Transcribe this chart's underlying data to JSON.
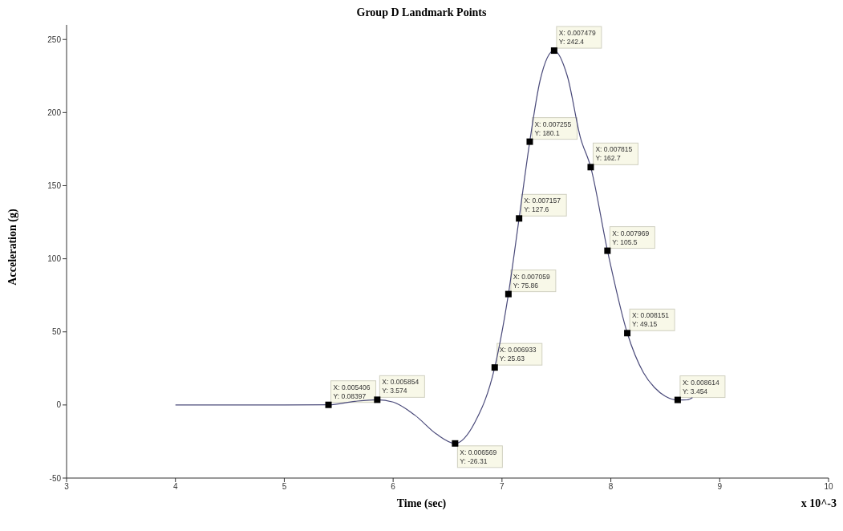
{
  "chart_data": {
    "type": "line",
    "title": "Group D Landmark Points",
    "xlabel": "Time (sec)",
    "ylabel": "Acceleration (g)",
    "xlim": [
      3,
      10
    ],
    "xticks": [
      3,
      4,
      5,
      6,
      7,
      8,
      9,
      10
    ],
    "ylim": [
      -50,
      260
    ],
    "yticks": [
      -50,
      0,
      50,
      100,
      150,
      200,
      250
    ],
    "series": [
      {
        "color": "#4a4a7a",
        "marker": "none",
        "x": [
          4,
          5,
          5.406,
          5.65,
          5.854,
          6.0,
          6.2,
          6.4,
          6.569,
          6.75,
          6.933,
          7.059,
          7.157,
          7.255,
          7.35,
          7.479,
          7.6,
          7.72,
          7.815,
          7.969,
          8.151,
          8.3,
          8.4,
          8.5,
          8.614,
          8.7,
          8.75
        ],
        "values": [
          0,
          0,
          0.08397,
          2.5,
          3.574,
          2,
          -7,
          -20,
          -26.31,
          -12,
          25.63,
          75.86,
          127.6,
          180.1,
          222,
          242.4,
          225,
          183,
          162.7,
          105.5,
          49.15,
          22,
          12,
          6,
          3.454,
          3.5,
          5
        ]
      },
      {
        "type": "scatter",
        "color": "#000000",
        "marker": "square",
        "x": [
          5.406,
          5.854,
          6.569,
          6.933,
          7.059,
          7.157,
          7.255,
          7.479,
          7.815,
          7.969,
          8.151,
          8.614
        ],
        "values": [
          0.08397,
          3.574,
          -26.31,
          25.63,
          75.86,
          127.6,
          180.1,
          242.4,
          162.7,
          105.5,
          49.15,
          3.454
        ]
      }
    ],
    "annotations": [
      {
        "text": "X: 0.005406\nY: 0.08397",
        "x": 5.406,
        "y": 0.08397
      },
      {
        "text": "X: 0.005854\nY: 3.574",
        "x": 5.854,
        "y": 3.574
      },
      {
        "text": "X: 0.006569\nY: -26.31",
        "x": 6.569,
        "y": -26.31
      },
      {
        "text": "X: 0.006933\nY: 25.63",
        "x": 6.933,
        "y": 25.63
      },
      {
        "text": "X: 0.007059\nY: 75.86",
        "x": 7.059,
        "y": 75.86
      },
      {
        "text": "X: 0.007157\nY: 127.6",
        "x": 7.157,
        "y": 127.6
      },
      {
        "text": "X: 0.007255\nY: 180.1",
        "x": 7.255,
        "y": 180.1
      },
      {
        "text": "X: 0.007479\nY: 242.4",
        "x": 7.479,
        "y": 242.4
      },
      {
        "text": "X: 0.007815\nY: 162.7",
        "x": 7.815,
        "y": 162.7
      },
      {
        "text": "X: 0.007969\nY: 105.5",
        "x": 7.969,
        "y": 105.5
      },
      {
        "text": "X: 0.008151\nY: 49.15",
        "x": 8.151,
        "y": 49.15
      },
      {
        "text": "X: 0.008614\nY: 3.454",
        "x": 8.614,
        "y": 3.454
      },
      "x 10^-3"
    ]
  }
}
